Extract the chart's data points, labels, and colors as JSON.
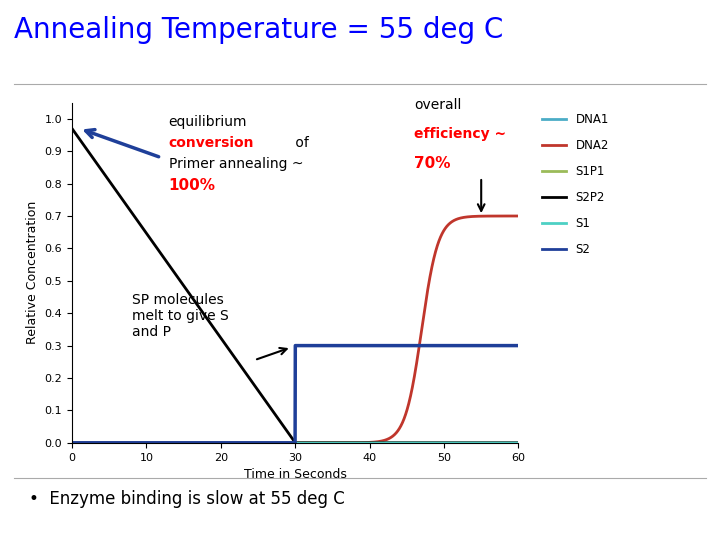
{
  "title": "Annealing Temperature = 55 deg C",
  "title_color": "#0000FF",
  "title_fontsize": 20,
  "xlabel": "Time in Seconds",
  "ylabel": "Relative Concentration",
  "xlim": [
    0,
    60
  ],
  "ylim": [
    0,
    1.05
  ],
  "yticks": [
    0,
    0.1,
    0.2,
    0.3,
    0.4,
    0.5,
    0.6,
    0.7,
    0.8,
    0.9,
    1
  ],
  "xticks": [
    0,
    10,
    20,
    30,
    40,
    50,
    60
  ],
  "bullet_text": "Enzyme binding is slow at 55 deg C",
  "legend_entries": [
    {
      "label": "DNA1",
      "color": "#4BACC6"
    },
    {
      "label": "DNA2",
      "color": "#C0362C"
    },
    {
      "label": "S1P1",
      "color": "#9BBB59"
    },
    {
      "label": "S2P2",
      "color": "#000000"
    },
    {
      "label": "S1",
      "color": "#4DD0C4"
    },
    {
      "label": "S2",
      "color": "#1F3F99"
    }
  ],
  "background_color": "#FFFFFF",
  "separator_color": "#AAAAAA",
  "ann1_arrow_color": "#1F3F99",
  "ann2_arrow_color": "#000000",
  "ann3_arrow_color": "#000000"
}
